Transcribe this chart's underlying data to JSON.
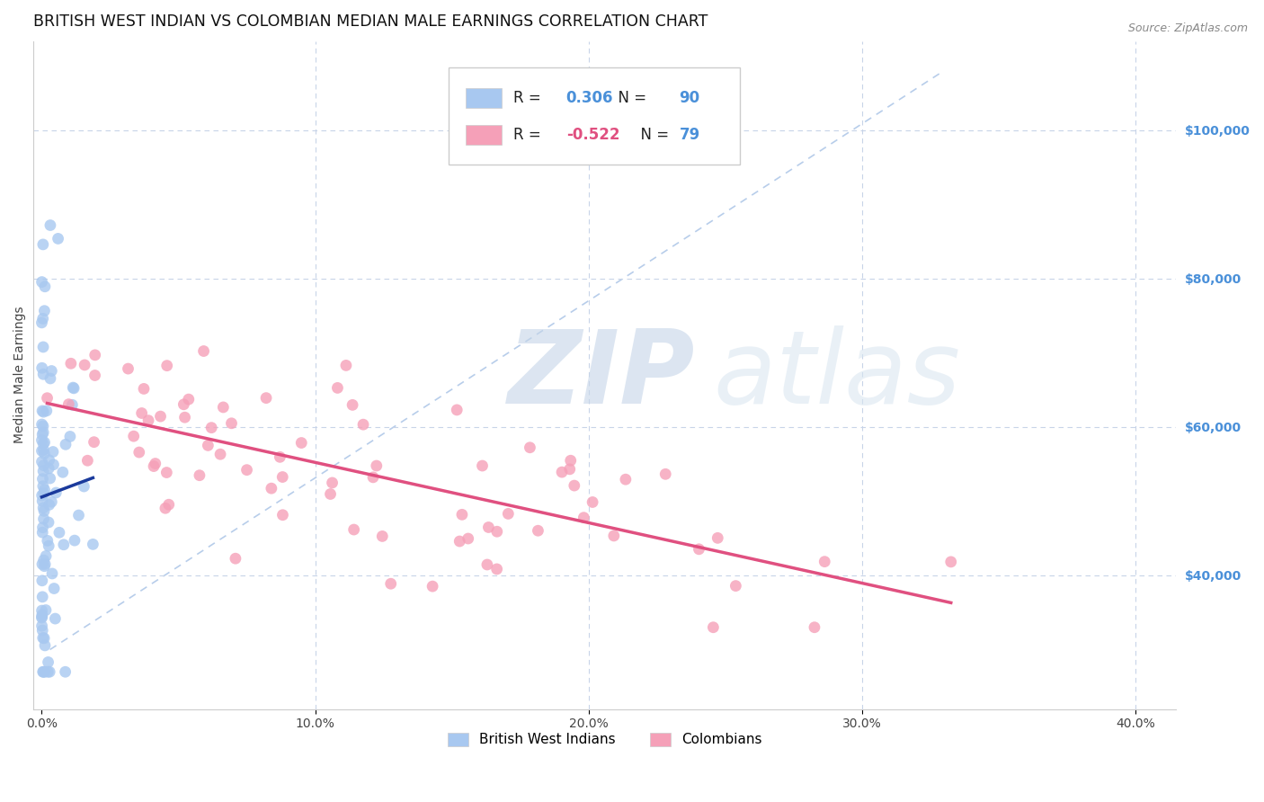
{
  "title": "BRITISH WEST INDIAN VS COLOMBIAN MEDIAN MALE EARNINGS CORRELATION CHART",
  "source": "Source: ZipAtlas.com",
  "ylabel": "Median Male Earnings",
  "watermark_zip": "ZIP",
  "watermark_atlas": "atlas",
  "legend_bwi_r": "0.306",
  "legend_bwi_n": "90",
  "legend_col_r": "-0.522",
  "legend_col_n": "79",
  "bwi_color": "#a8c8f0",
  "bwi_line_color": "#1a3a9c",
  "col_color": "#f5a0b8",
  "col_line_color": "#e05080",
  "diag_line_color": "#b0c8e8",
  "ytick_labels": [
    "$40,000",
    "$60,000",
    "$80,000",
    "$100,000"
  ],
  "ytick_values": [
    40000,
    60000,
    80000,
    100000
  ],
  "ytick_color": "#4a90d9",
  "ymin": 22000,
  "ymax": 112000,
  "xmin": -0.003,
  "xmax": 0.415,
  "title_fontsize": 12.5,
  "axis_label_fontsize": 10,
  "tick_fontsize": 10,
  "background_color": "#ffffff",
  "grid_color": "#c8d4e8"
}
